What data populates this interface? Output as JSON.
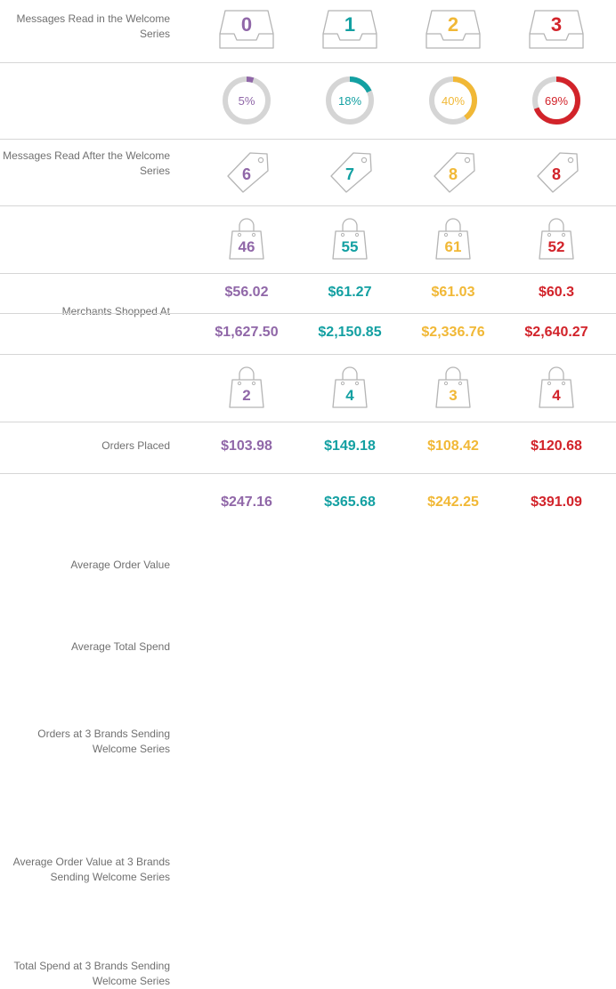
{
  "columns": [
    {
      "color": "#9067a8"
    },
    {
      "color": "#13a0a2"
    },
    {
      "color": "#f1b836"
    },
    {
      "color": "#d2232a"
    }
  ],
  "chart_data": {
    "type": "table",
    "rows": [
      {
        "label": "Messages Read in the Welcome Series",
        "kind": "inbox",
        "values": [
          "0",
          "1",
          "2",
          "3"
        ]
      },
      {
        "label": "Messages Read After the Welcome Series",
        "kind": "donut",
        "values": [
          "5%",
          "18%",
          "40%",
          "69%"
        ],
        "percents": [
          5,
          18,
          40,
          69
        ]
      },
      {
        "label": "Merchants Shopped At",
        "kind": "tag",
        "values": [
          "6",
          "7",
          "8",
          "8"
        ]
      },
      {
        "label": "Orders Placed",
        "kind": "bag",
        "values": [
          "46",
          "55",
          "61",
          "52"
        ]
      },
      {
        "label": "Average Order Value",
        "kind": "text",
        "values": [
          "$56.02",
          "$61.27",
          "$61.03",
          "$60.3"
        ]
      },
      {
        "label": "Average Total Spend",
        "kind": "text",
        "values": [
          "$1,627.50",
          "$2,150.85",
          "$2,336.76",
          "$2,640.27"
        ]
      },
      {
        "label": "Orders at 3 Brands Sending Welcome Series",
        "kind": "bag",
        "values": [
          "2",
          "4",
          "3",
          "4"
        ]
      },
      {
        "label": "Average Order Value at 3 Brands Sending Welcome Series",
        "kind": "text",
        "values": [
          "$103.98",
          "$149.18",
          "$108.42",
          "$120.68"
        ]
      },
      {
        "label": "Total Spend at 3 Brands Sending Welcome Series",
        "kind": "text",
        "values": [
          "$247.16",
          "$365.68",
          "$242.25",
          "$391.09"
        ]
      }
    ]
  }
}
